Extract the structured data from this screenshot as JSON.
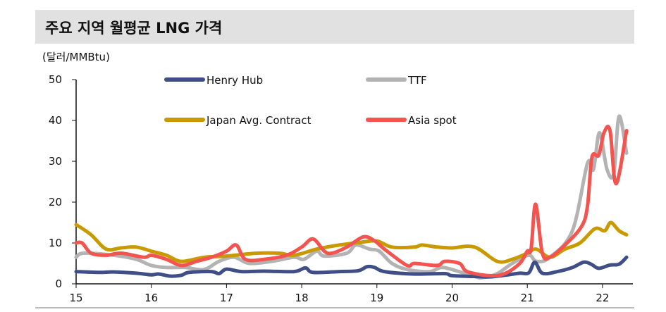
{
  "chart_data": {
    "type": "line",
    "title": "주요 지역 월평균 LNG 가격",
    "ylabel": "(달러/MMBtu)",
    "xlabel": "",
    "ylim": [
      0,
      50
    ],
    "xlim": [
      15,
      22.4
    ],
    "yticks": [
      "0",
      "10",
      "20",
      "30",
      "40",
      "50"
    ],
    "xticks": [
      "15",
      "16",
      "17",
      "18",
      "19",
      "20",
      "21",
      "22"
    ],
    "legend": "top-center",
    "grid": false,
    "series": [
      {
        "name": "Henry Hub",
        "color": "#3f4e87",
        "points": [
          [
            15.0,
            3.0
          ],
          [
            15.3,
            2.8
          ],
          [
            15.5,
            2.9
          ],
          [
            15.8,
            2.6
          ],
          [
            16.0,
            2.2
          ],
          [
            16.1,
            2.4
          ],
          [
            16.25,
            1.9
          ],
          [
            16.4,
            2.1
          ],
          [
            16.5,
            2.8
          ],
          [
            16.8,
            3.0
          ],
          [
            16.9,
            2.5
          ],
          [
            17.0,
            3.6
          ],
          [
            17.2,
            3.0
          ],
          [
            17.5,
            3.1
          ],
          [
            17.9,
            3.0
          ],
          [
            18.05,
            3.9
          ],
          [
            18.15,
            2.8
          ],
          [
            18.5,
            3.0
          ],
          [
            18.75,
            3.2
          ],
          [
            18.87,
            4.2
          ],
          [
            18.97,
            4.0
          ],
          [
            19.1,
            3.0
          ],
          [
            19.5,
            2.4
          ],
          [
            19.9,
            2.5
          ],
          [
            20.0,
            2.0
          ],
          [
            20.3,
            1.8
          ],
          [
            20.5,
            1.7
          ],
          [
            20.7,
            2.1
          ],
          [
            20.9,
            2.6
          ],
          [
            21.02,
            2.7
          ],
          [
            21.1,
            5.3
          ],
          [
            21.2,
            2.6
          ],
          [
            21.4,
            3.0
          ],
          [
            21.6,
            4.0
          ],
          [
            21.75,
            5.3
          ],
          [
            21.85,
            4.8
          ],
          [
            21.95,
            3.8
          ],
          [
            22.1,
            4.6
          ],
          [
            22.22,
            4.8
          ],
          [
            22.32,
            6.5
          ]
        ]
      },
      {
        "name": "TTF",
        "color": "#b3b3b3",
        "points": [
          [
            15.0,
            6.5
          ],
          [
            15.1,
            7.5
          ],
          [
            15.5,
            7.0
          ],
          [
            15.8,
            6.0
          ],
          [
            16.0,
            4.5
          ],
          [
            16.2,
            4.0
          ],
          [
            16.45,
            4.0
          ],
          [
            16.7,
            3.5
          ],
          [
            16.9,
            5.5
          ],
          [
            17.1,
            6.5
          ],
          [
            17.3,
            5.0
          ],
          [
            17.6,
            5.5
          ],
          [
            17.9,
            6.5
          ],
          [
            18.03,
            6.0
          ],
          [
            18.2,
            8.0
          ],
          [
            18.3,
            6.8
          ],
          [
            18.6,
            7.5
          ],
          [
            18.72,
            9.5
          ],
          [
            18.9,
            8.5
          ],
          [
            19.03,
            8.0
          ],
          [
            19.2,
            5.0
          ],
          [
            19.4,
            3.5
          ],
          [
            19.7,
            3.0
          ],
          [
            19.85,
            4.0
          ],
          [
            20.0,
            3.5
          ],
          [
            20.3,
            1.8
          ],
          [
            20.4,
            1.5
          ],
          [
            20.6,
            2.5
          ],
          [
            20.8,
            5.0
          ],
          [
            21.02,
            7.0
          ],
          [
            21.12,
            5.5
          ],
          [
            21.3,
            6.5
          ],
          [
            21.6,
            13.0
          ],
          [
            21.8,
            29.5
          ],
          [
            21.88,
            28.0
          ],
          [
            21.96,
            37.0
          ],
          [
            22.06,
            28.0
          ],
          [
            22.15,
            27.0
          ],
          [
            22.22,
            41.0
          ],
          [
            22.32,
            32.0
          ]
        ]
      },
      {
        "name": "Japan Avg. Contract",
        "color": "#c99a00",
        "points": [
          [
            15.0,
            14.5
          ],
          [
            15.2,
            12.0
          ],
          [
            15.4,
            8.5
          ],
          [
            15.6,
            8.8
          ],
          [
            15.8,
            9.0
          ],
          [
            16.0,
            8.0
          ],
          [
            16.2,
            7.0
          ],
          [
            16.4,
            5.5
          ],
          [
            16.7,
            6.5
          ],
          [
            17.0,
            6.8
          ],
          [
            17.4,
            7.5
          ],
          [
            17.7,
            7.5
          ],
          [
            17.9,
            7.0
          ],
          [
            18.2,
            8.5
          ],
          [
            18.5,
            9.5
          ],
          [
            18.8,
            10.2
          ],
          [
            19.0,
            10.5
          ],
          [
            19.2,
            9.0
          ],
          [
            19.5,
            9.0
          ],
          [
            19.6,
            9.5
          ],
          [
            19.8,
            9.0
          ],
          [
            20.0,
            8.8
          ],
          [
            20.3,
            9.0
          ],
          [
            20.6,
            5.5
          ],
          [
            20.8,
            6.0
          ],
          [
            21.0,
            7.5
          ],
          [
            21.12,
            8.5
          ],
          [
            21.3,
            6.5
          ],
          [
            21.5,
            8.5
          ],
          [
            21.7,
            10.0
          ],
          [
            21.9,
            13.5
          ],
          [
            22.03,
            13.0
          ],
          [
            22.11,
            15.0
          ],
          [
            22.22,
            13.0
          ],
          [
            22.32,
            12.0
          ]
        ]
      },
      {
        "name": "Asia spot",
        "color": "#f4544f",
        "points": [
          [
            15.0,
            10.0
          ],
          [
            15.08,
            10.0
          ],
          [
            15.2,
            7.5
          ],
          [
            15.4,
            7.0
          ],
          [
            15.6,
            7.5
          ],
          [
            15.9,
            6.5
          ],
          [
            16.0,
            7.0
          ],
          [
            16.2,
            6.0
          ],
          [
            16.4,
            4.5
          ],
          [
            16.6,
            5.5
          ],
          [
            16.8,
            6.5
          ],
          [
            17.0,
            8.0
          ],
          [
            17.13,
            9.5
          ],
          [
            17.25,
            6.0
          ],
          [
            17.5,
            6.0
          ],
          [
            17.8,
            7.0
          ],
          [
            18.0,
            9.0
          ],
          [
            18.15,
            11.0
          ],
          [
            18.3,
            8.0
          ],
          [
            18.4,
            7.5
          ],
          [
            18.6,
            9.0
          ],
          [
            18.82,
            11.5
          ],
          [
            18.97,
            10.5
          ],
          [
            19.1,
            8.5
          ],
          [
            19.4,
            4.5
          ],
          [
            19.5,
            5.0
          ],
          [
            19.8,
            4.5
          ],
          [
            19.9,
            5.5
          ],
          [
            20.1,
            5.0
          ],
          [
            20.2,
            3.0
          ],
          [
            20.5,
            2.0
          ],
          [
            20.7,
            2.5
          ],
          [
            20.9,
            5.0
          ],
          [
            21.0,
            8.0
          ],
          [
            21.05,
            8.5
          ],
          [
            21.11,
            19.5
          ],
          [
            21.2,
            7.5
          ],
          [
            21.3,
            6.5
          ],
          [
            21.5,
            9.5
          ],
          [
            21.72,
            14.0
          ],
          [
            21.8,
            19.0
          ],
          [
            21.86,
            31.0
          ],
          [
            21.95,
            31.5
          ],
          [
            22.02,
            37.0
          ],
          [
            22.1,
            37.5
          ],
          [
            22.18,
            24.5
          ],
          [
            22.32,
            37.5
          ]
        ]
      }
    ]
  }
}
